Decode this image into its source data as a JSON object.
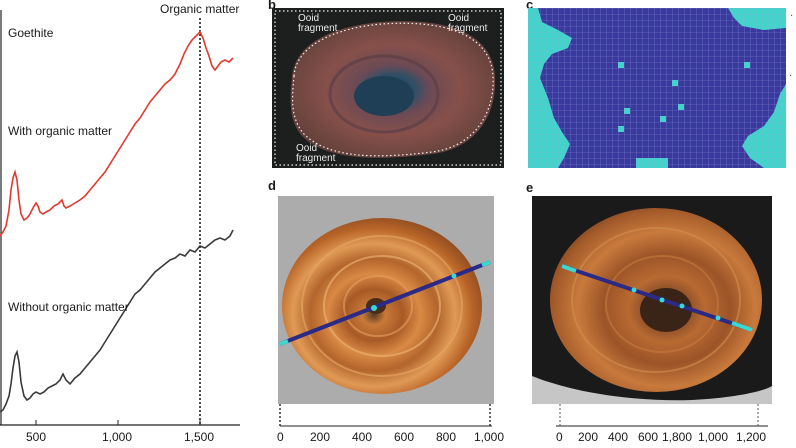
{
  "panel_a": {
    "label_goethite": "Goethite",
    "label_with": "With organic matter",
    "label_without": "Without organic matter",
    "marker_label": "Organic matter",
    "x_ticks": [
      "500",
      "1,000",
      "1,500"
    ],
    "colors": {
      "with": "#e03a2e",
      "without": "#3a3a3a",
      "marker": "#000000"
    }
  },
  "panel_b": {
    "label": "b",
    "fragment_labels": [
      "Ooid\nfragment",
      "Ooid\nfragment",
      "Ooid\nfragment"
    ],
    "colors": {
      "bg": "#1c1f1e",
      "outer": "#7a4a45",
      "core": "#1e3f55"
    }
  },
  "panel_c": {
    "label": "c",
    "colors": {
      "main": "#3a3a9e",
      "edge": "#3fd6c9"
    }
  },
  "panel_d": {
    "label": "d",
    "x_ticks": [
      "0",
      "200",
      "400",
      "600",
      "800",
      "1,000"
    ],
    "colors": {
      "bg": "#9a9a9a",
      "ooid": "#c8682a",
      "line": "#2b2a86",
      "accent": "#3ad8d0"
    }
  },
  "panel_e": {
    "label": "e",
    "x_ticks": [
      "0",
      "200",
      "400",
      "600",
      "1,800",
      "1,000",
      "1,200"
    ],
    "colors": {
      "bg": "#1a1a1a",
      "ooid": "#b55e2c",
      "line": "#2b2a86",
      "accent": "#3ad8d0"
    }
  }
}
